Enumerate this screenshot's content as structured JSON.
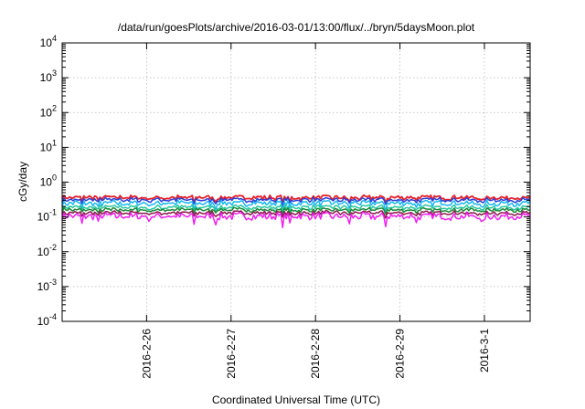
{
  "chart_data": {
    "type": "line",
    "title": "/data/run/goesPlots/archive/2016-03-01/13:00/flux/../bryn/5daysMoon.plot",
    "xlabel": "Coordinated Universal Time (UTC)",
    "ylabel": "cGy/day",
    "yscale": "log",
    "ylim": [
      0.0001,
      10000
    ],
    "y_ticks": [
      {
        "value": 0.0001,
        "base": "10",
        "exp": "-4"
      },
      {
        "value": 0.001,
        "base": "10",
        "exp": "-3"
      },
      {
        "value": 0.01,
        "base": "10",
        "exp": "-2"
      },
      {
        "value": 0.1,
        "base": "10",
        "exp": "-1"
      },
      {
        "value": 1,
        "base": "10",
        "exp": "0"
      },
      {
        "value": 10,
        "base": "10",
        "exp": "1"
      },
      {
        "value": 100,
        "base": "10",
        "exp": "2"
      },
      {
        "value": 1000,
        "base": "10",
        "exp": "3"
      },
      {
        "value": 10000,
        "base": "10",
        "exp": "4"
      }
    ],
    "xlim": [
      "2016-02-25 00:00",
      "2016-03-01 13:00"
    ],
    "x_ticks": [
      "2016-2-26",
      "2016-2-27",
      "2016-2-28",
      "2016-2-29",
      "2016-3-1"
    ],
    "grid": true,
    "series": [
      {
        "color": "#e8202a",
        "level": 0.36,
        "amp": 0.25
      },
      {
        "color": "#2a3fd8",
        "level": 0.31,
        "amp": 0.25
      },
      {
        "color": "#18b8f0",
        "level": 0.25,
        "amp": 0.35
      },
      {
        "color": "#28c8a0",
        "level": 0.19,
        "amp": 0.25
      },
      {
        "color": "#1a8a3a",
        "level": 0.16,
        "amp": 0.22
      },
      {
        "color": "#8a1a4a",
        "level": 0.13,
        "amp": 0.22
      },
      {
        "color": "#f020f0",
        "level": 0.105,
        "amp": 0.45
      }
    ]
  }
}
